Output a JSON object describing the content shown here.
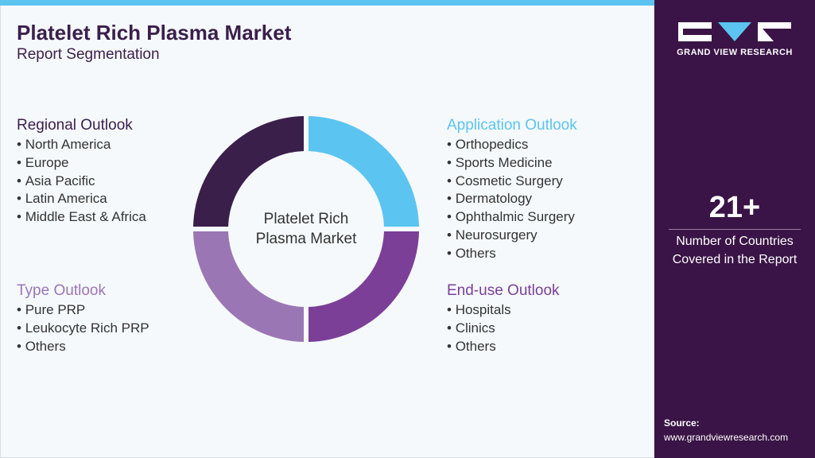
{
  "header": {
    "title": "Platelet Rich Plasma Market",
    "subtitle": "Report Segmentation"
  },
  "center_label": "Platelet Rich Plasma Market",
  "segments": [
    {
      "title": "Regional Outlook",
      "items": [
        "North America",
        "Europe",
        "Asia Pacific",
        "Latin America",
        "Middle East & Africa"
      ]
    },
    {
      "title": "Application Outlook",
      "items": [
        "Orthopedics",
        "Sports Medicine",
        "Cosmetic Surgery",
        "Dermatology",
        "Ophthalmic Surgery",
        "Neurosurgery",
        "Others"
      ]
    },
    {
      "title": "Type Outlook",
      "items": [
        "Pure PRP",
        "Leukocyte Rich PRP",
        "Others"
      ]
    },
    {
      "title": "End-use Outlook",
      "items": [
        "Hospitals",
        "Clinics",
        "Others"
      ]
    }
  ],
  "sidebar": {
    "brand": "GRAND VIEW RESEARCH",
    "stat_value": "21+",
    "stat_label": "Number of Countries Covered in the Report",
    "source_label": "Source:",
    "source_url": "www.grandviewresearch.com"
  }
}
